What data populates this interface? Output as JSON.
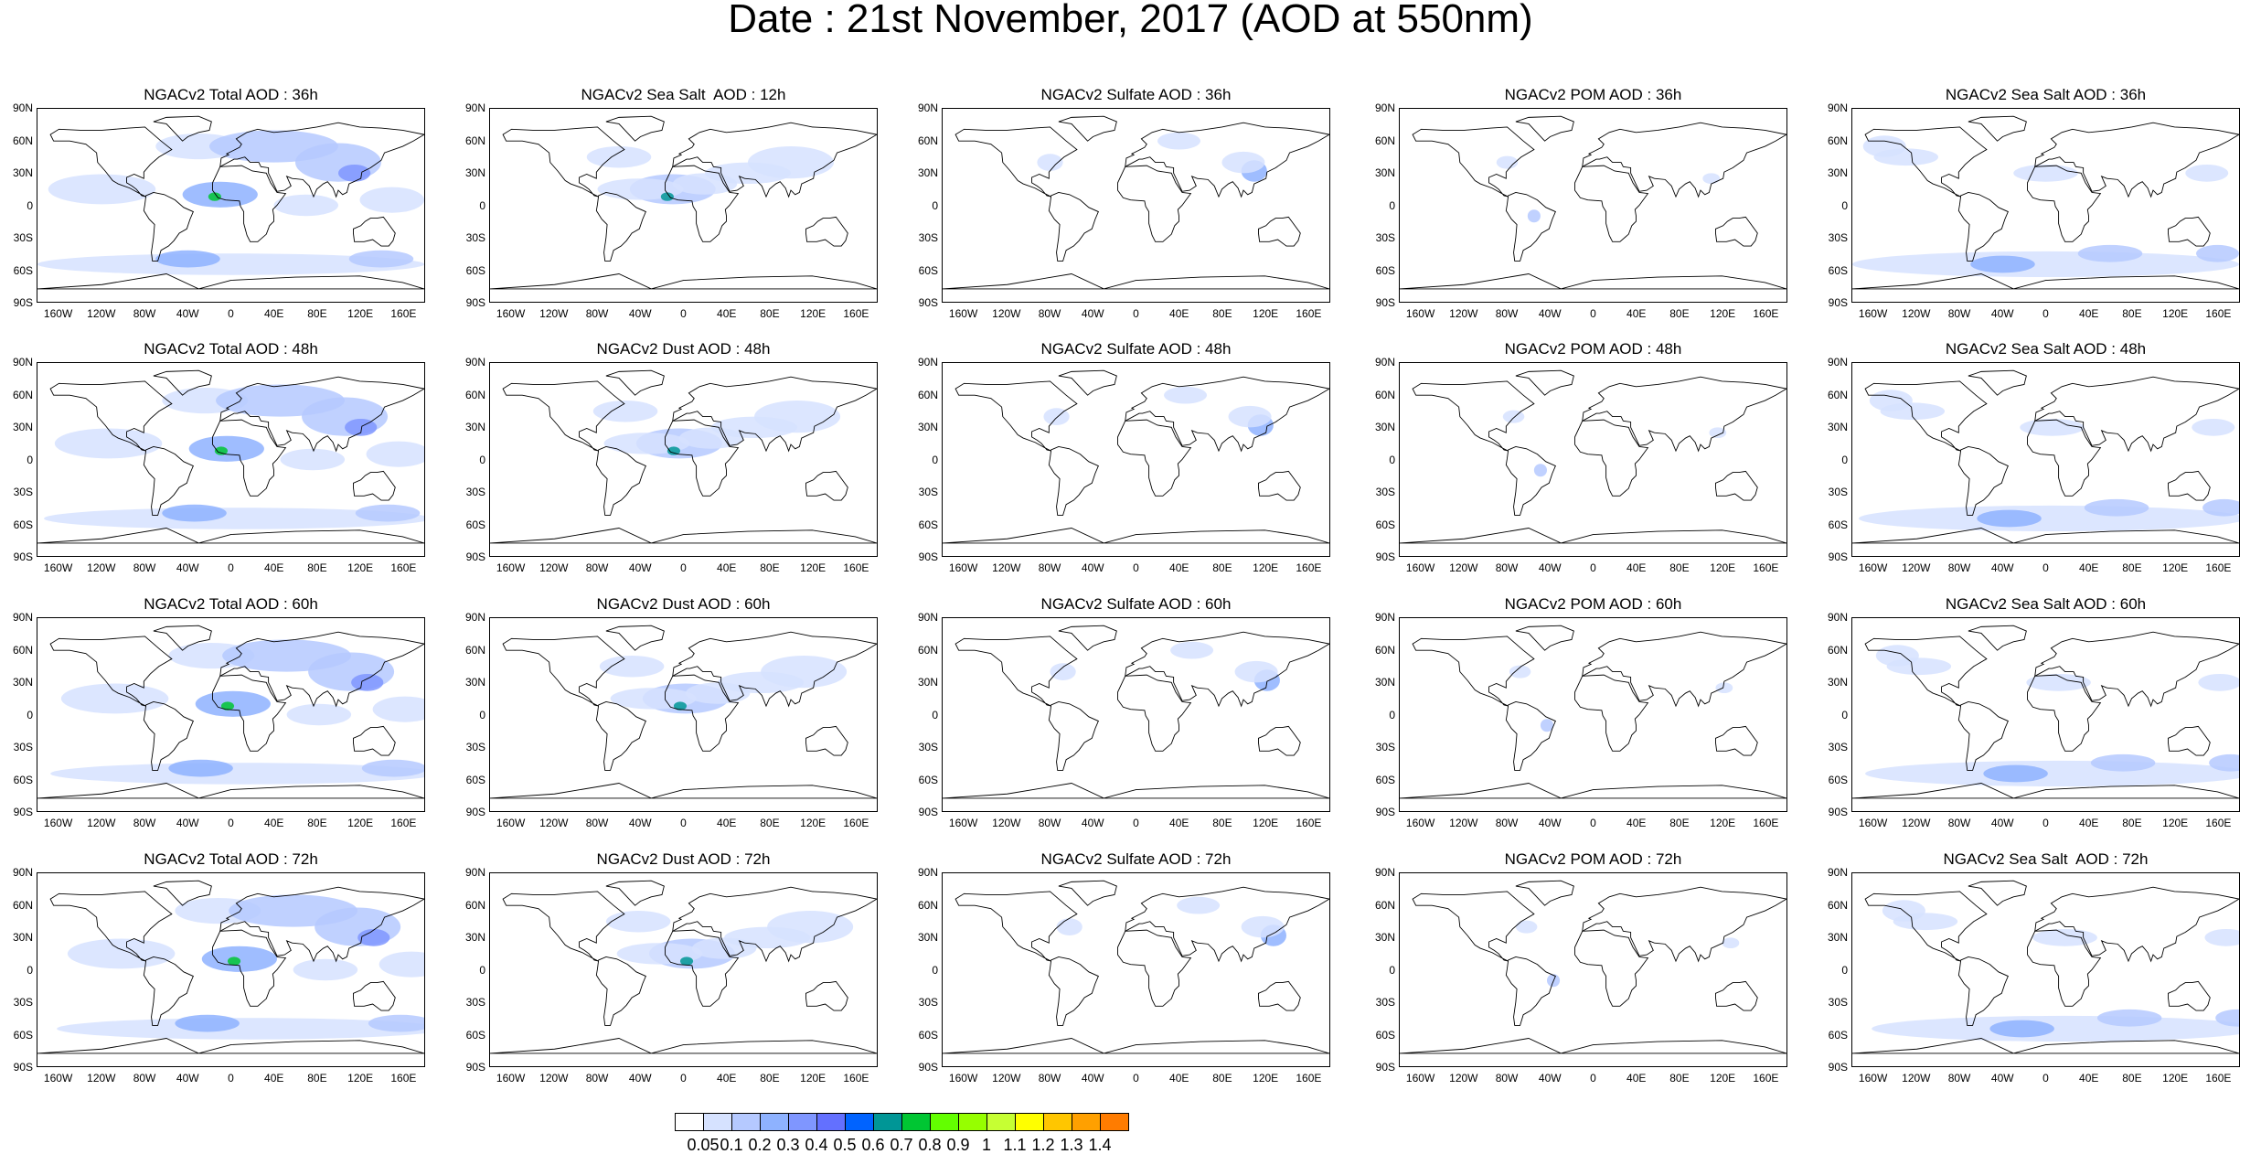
{
  "title": "Date : 21st November, 2017 (AOD at 550nm)",
  "lat_labels": [
    "90N",
    "60N",
    "30N",
    "0",
    "30S",
    "60S",
    "90S"
  ],
  "lon_labels": [
    "160W",
    "120W",
    "80W",
    "40W",
    "0",
    "40E",
    "80E",
    "120E",
    "160E"
  ],
  "panels": [
    [
      "NGACv2 Total AOD : 36h",
      "NGACv2 Sea Salt  AOD : 12h",
      "NGACv2 Sulfate AOD : 36h",
      "NGACv2 POM AOD : 36h",
      "NGACv2 Sea Salt AOD : 36h"
    ],
    [
      "NGACv2 Total AOD : 48h",
      "NGACv2 Dust AOD : 48h",
      "NGACv2 Sulfate AOD : 48h",
      "NGACv2 POM AOD : 48h",
      "NGACv2 Sea Salt AOD : 48h"
    ],
    [
      "NGACv2 Total AOD : 60h",
      "NGACv2 Dust AOD : 60h",
      "NGACv2 Sulfate AOD : 60h",
      "NGACv2 POM AOD : 60h",
      "NGACv2 Sea Salt AOD : 60h"
    ],
    [
      "NGACv2 Total AOD : 72h",
      "NGACv2 Dust AOD : 72h",
      "NGACv2 Sulfate AOD : 72h",
      "NGACv2 POM AOD : 72h",
      "NGACv2 Sea Salt  AOD : 72h"
    ]
  ],
  "colorbar": {
    "levels": [
      "0.05",
      "0.1",
      "0.2",
      "0.3",
      "0.4",
      "0.5",
      "0.6",
      "0.7",
      "0.8",
      "0.9",
      "1",
      "1.1",
      "1.2",
      "1.3",
      "1.4"
    ],
    "colors": [
      "#ffffff",
      "#d6e2ff",
      "#b5c9ff",
      "#8eb2ff",
      "#7f96ff",
      "#6370ff",
      "#0063ff",
      "#009696",
      "#00c633",
      "#63ff00",
      "#96ff00",
      "#c6ff33",
      "#ffff00",
      "#ffc600",
      "#ffa000",
      "#ff7c00",
      "#ff1900"
    ]
  },
  "icons": {
    "map": "world-coastline-outline",
    "plume": "aod-shading"
  }
}
